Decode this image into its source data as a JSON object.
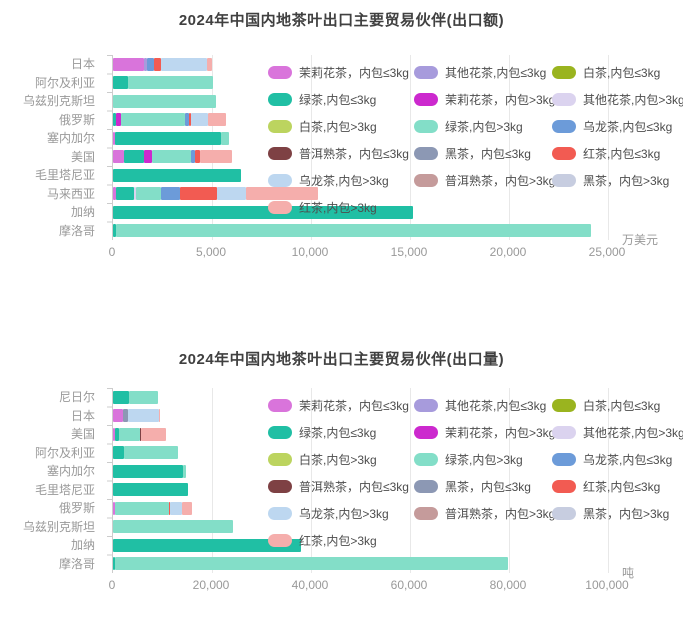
{
  "chart_data": [
    {
      "type": "bar",
      "orientation": "horizontal-stacked",
      "title": "2024年中国内地茶叶出口主要贸易伙伴(出口额)",
      "unit": "万美元",
      "xlabel": "万美元",
      "ylabel": "",
      "xlim": [
        0,
        25000
      ],
      "xticks": [
        "0",
        "5,000",
        "10,000",
        "15,000",
        "20,000",
        "25,000"
      ],
      "grid": true,
      "legend_position": "top-right-overlay",
      "categories": [
        "日本",
        "阿尔及利亚",
        "乌兹别克斯坦",
        "俄罗斯",
        "塞内加尔",
        "美国",
        "毛里塔尼亚",
        "马来西亚",
        "加纳",
        "摩洛哥"
      ],
      "series": [
        {
          "name": "茉莉花茶，内包≤3kg",
          "color": "#D974DB",
          "values": [
            1550,
            0,
            0,
            0,
            100,
            550,
            0,
            150,
            0,
            0
          ]
        },
        {
          "name": "其他花茶,内包≤3kg",
          "color": "#A79BDC",
          "values": [
            150,
            0,
            0,
            0,
            0,
            0,
            0,
            0,
            0,
            0
          ]
        },
        {
          "name": "白茶,内包≤3kg",
          "color": "#9AB41F",
          "values": [
            0,
            0,
            0,
            0,
            0,
            0,
            0,
            0,
            0,
            0
          ]
        },
        {
          "name": "绿茶,内包≤3kg",
          "color": "#20BFA4",
          "values": [
            0,
            750,
            0,
            170,
            5350,
            1000,
            6450,
            900,
            15150,
            150
          ]
        },
        {
          "name": "茉莉花茶，内包>3kg",
          "color": "#CC29CE",
          "values": [
            0,
            0,
            0,
            220,
            0,
            400,
            0,
            0,
            0,
            0
          ]
        },
        {
          "name": "其他花茶,内包>3kg",
          "color": "#DBD3EF",
          "values": [
            0,
            0,
            0,
            0,
            0,
            0,
            0,
            100,
            0,
            0
          ]
        },
        {
          "name": "白茶,内包>3kg",
          "color": "#BCD45F",
          "values": [
            0,
            0,
            0,
            0,
            0,
            0,
            0,
            0,
            0,
            0
          ]
        },
        {
          "name": "绿茶,内包>3kg",
          "color": "#83DEC8",
          "values": [
            0,
            4300,
            5200,
            3230,
            390,
            2000,
            0,
            1250,
            0,
            24000
          ]
        },
        {
          "name": "乌龙茶,内包≤3kg",
          "color": "#6C9BD9",
          "values": [
            350,
            0,
            0,
            200,
            0,
            190,
            0,
            980,
            0,
            0
          ]
        },
        {
          "name": "普洱熟茶，内包≤3kg",
          "color": "#7E4144",
          "values": [
            0,
            0,
            0,
            0,
            0,
            0,
            0,
            0,
            0,
            0
          ]
        },
        {
          "name": "黑茶，内包≤3kg",
          "color": "#8C98B4",
          "values": [
            0,
            0,
            0,
            0,
            0,
            0,
            0,
            0,
            0,
            0
          ]
        },
        {
          "name": "红茶,内包≤3kg",
          "color": "#F25B52",
          "values": [
            350,
            0,
            0,
            100,
            0,
            250,
            0,
            1880,
            0,
            0
          ]
        },
        {
          "name": "乌龙茶,内包>3kg",
          "color": "#BDD7F0",
          "values": [
            2350,
            0,
            0,
            900,
            0,
            0,
            0,
            1470,
            0,
            0
          ]
        },
        {
          "name": "普洱熟茶，内包>3kg",
          "color": "#C59B9B",
          "values": [
            0,
            0,
            0,
            0,
            0,
            0,
            0,
            0,
            0,
            0
          ]
        },
        {
          "name": "黑茶，内包>3kg",
          "color": "#C7CDE0",
          "values": [
            0,
            0,
            0,
            0,
            0,
            0,
            0,
            0,
            0,
            0
          ]
        },
        {
          "name": "红茶,内包>3kg",
          "color": "#F5AEAC",
          "values": [
            270,
            0,
            0,
            890,
            0,
            1600,
            0,
            3620,
            0,
            0
          ]
        }
      ]
    },
    {
      "type": "bar",
      "orientation": "horizontal-stacked",
      "title": "2024年中国内地茶叶出口主要贸易伙伴(出口量)",
      "unit": "吨",
      "xlabel": "吨",
      "ylabel": "",
      "xlim": [
        0,
        100000
      ],
      "xticks": [
        "0",
        "20,000",
        "40,000",
        "60,000",
        "80,000",
        "100,000"
      ],
      "grid": true,
      "legend_position": "top-right-overlay",
      "categories": [
        "尼日尔",
        "日本",
        "美国",
        "阿尔及利亚",
        "塞内加尔",
        "毛里塔尼亚",
        "俄罗斯",
        "乌兹别克斯坦",
        "加纳",
        "摩洛哥"
      ],
      "series": [
        {
          "name": "茉莉花茶，内包≤3kg",
          "color": "#D974DB",
          "values": [
            0,
            2000,
            400,
            0,
            0,
            0,
            400,
            0,
            0,
            0
          ]
        },
        {
          "name": "其他花茶,内包≤3kg",
          "color": "#A79BDC",
          "values": [
            0,
            0,
            0,
            0,
            0,
            0,
            0,
            0,
            0,
            0
          ]
        },
        {
          "name": "白茶,内包≤3kg",
          "color": "#9AB41F",
          "values": [
            0,
            0,
            0,
            0,
            0,
            0,
            0,
            0,
            0,
            0
          ]
        },
        {
          "name": "绿茶,内包≤3kg",
          "color": "#20BFA4",
          "values": [
            3200,
            0,
            900,
            2150,
            14100,
            15200,
            0,
            0,
            38000,
            500
          ]
        },
        {
          "name": "茉莉花茶，内包>3kg",
          "color": "#CC29CE",
          "values": [
            0,
            0,
            0,
            0,
            0,
            0,
            0,
            0,
            0,
            0
          ]
        },
        {
          "name": "其他花茶,内包>3kg",
          "color": "#DBD3EF",
          "values": [
            0,
            0,
            0,
            0,
            0,
            0,
            0,
            0,
            0,
            0
          ]
        },
        {
          "name": "白茶,内包>3kg",
          "color": "#BCD45F",
          "values": [
            0,
            0,
            0,
            0,
            0,
            0,
            0,
            0,
            0,
            0
          ]
        },
        {
          "name": "绿茶,内包>3kg",
          "color": "#83DEC8",
          "values": [
            5900,
            0,
            4200,
            10900,
            670,
            0,
            10900,
            24200,
            0,
            79200
          ]
        },
        {
          "name": "乌龙茶,内包≤3kg",
          "color": "#6C9BD9",
          "values": [
            0,
            0,
            0,
            0,
            0,
            0,
            0,
            0,
            0,
            0
          ]
        },
        {
          "name": "普洱熟茶，内包≤3kg",
          "color": "#7E4144",
          "values": [
            0,
            0,
            150,
            0,
            0,
            0,
            0,
            0,
            0,
            0
          ]
        },
        {
          "name": "黑茶，内包≤3kg",
          "color": "#8C98B4",
          "values": [
            0,
            1100,
            0,
            0,
            0,
            0,
            0,
            0,
            0,
            0
          ]
        },
        {
          "name": "红茶,内包≤3kg",
          "color": "#F25B52",
          "values": [
            0,
            0,
            0,
            0,
            0,
            0,
            300,
            0,
            0,
            0
          ]
        },
        {
          "name": "乌龙茶,内包>3kg",
          "color": "#BDD7F0",
          "values": [
            0,
            6100,
            0,
            0,
            0,
            0,
            2300,
            0,
            0,
            0
          ]
        },
        {
          "name": "普洱熟茶，内包>3kg",
          "color": "#C59B9B",
          "values": [
            0,
            0,
            0,
            0,
            0,
            0,
            0,
            0,
            0,
            0
          ]
        },
        {
          "name": "黑茶，内包>3kg",
          "color": "#C7CDE0",
          "values": [
            0,
            0,
            0,
            0,
            0,
            0,
            0,
            0,
            0,
            0
          ]
        },
        {
          "name": "红茶,内包>3kg",
          "color": "#F5AEAC",
          "values": [
            0,
            300,
            5100,
            0,
            0,
            0,
            2000,
            0,
            0,
            0
          ]
        }
      ]
    }
  ]
}
